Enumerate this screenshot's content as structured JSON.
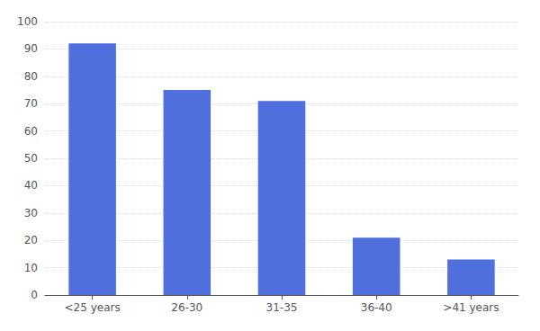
{
  "chart_data": {
    "type": "bar",
    "categories": [
      "<25 years",
      "26-30",
      "31-35",
      "36-40",
      ">41 years"
    ],
    "values": [
      92,
      75,
      71,
      21,
      13
    ],
    "ylim": [
      0,
      100
    ],
    "yticks": [
      0,
      10,
      20,
      30,
      40,
      50,
      60,
      70,
      80,
      90,
      100
    ],
    "grid": true
  }
}
